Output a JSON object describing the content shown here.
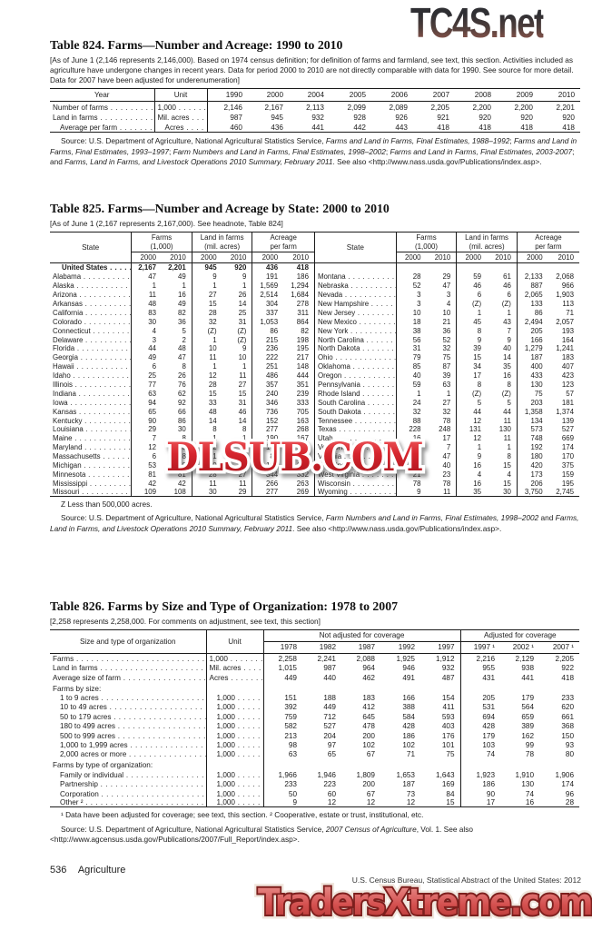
{
  "watermarks": {
    "top": "TC4S.net",
    "middle": "DLSUB.COM",
    "bottom": "TradersXtreme.com",
    "top_color": "#4a3b38",
    "middle_color": "#c41e25",
    "bottom_color": "#d8595b"
  },
  "footer": {
    "page_number": "536",
    "section": "Agriculture",
    "census_line": "U.S. Census Bureau, Statistical Abstract of the United States: 2012"
  },
  "t824": {
    "title": "Table 824. Farms—Number and Acreage: 1990 to 2010",
    "headnote": "[As of June 1 (2,146 represents 2,146,000). Based on 1974 census definition; for definition of farms and farmland, see text, this section. Activities included as agriculture have undergone changes in recent years. Data for period 2000 to 2010 are not directly comparable with data for 1990. See source for more detail. Data for 2007 have been adjusted for underenumeration]",
    "columns": [
      "Year",
      "Unit",
      "1990",
      "2000",
      "2004",
      "2005",
      "2006",
      "2007",
      "2008",
      "2009",
      "2010"
    ],
    "rows": [
      {
        "c": [
          "Number of farms",
          "1,000",
          "2,146",
          "2,167",
          "2,113",
          "2,099",
          "2,089",
          "2,205",
          "2,200",
          "2,200",
          "2,201"
        ]
      },
      {
        "c": [
          "Land in farms",
          "Mil. acres",
          "987",
          "945",
          "932",
          "928",
          "926",
          "921",
          "920",
          "920",
          "920"
        ]
      },
      {
        "cls": "ind",
        "c": [
          "Average per farm",
          "Acres",
          "460",
          "436",
          "441",
          "442",
          "443",
          "418",
          "418",
          "418",
          "418"
        ]
      }
    ],
    "source": [
      [
        "Source: U.S. Department of Agriculture, National Agricultural Statistics Service, ",
        "n"
      ],
      [
        "Farms and Land in Farms, Final Estimates, 1988–1992",
        "i"
      ],
      [
        "; ",
        "n"
      ],
      [
        "Farms and Land in Farms, Final Estimates, 1993–1997",
        "i"
      ],
      [
        "; ",
        "n"
      ],
      [
        "Farm Numbers and Land in Farms, Final Estimates, 1998–2002",
        "i"
      ],
      [
        "; ",
        "n"
      ],
      [
        "Farms and Land in Farms, Final Estimates, 2003-2007",
        "i"
      ],
      [
        "; and ",
        "n"
      ],
      [
        "Farms, Land in Farms, and Livestock Operations 2010 Summary, February 2011",
        "i"
      ],
      [
        ". See also <http://www.nass.usda.gov/Publications/index.asp>.",
        "n"
      ]
    ]
  },
  "t825": {
    "title": "Table 825. Farms—Number and Acreage by State: 2000 to 2010",
    "headnote": "[As of June 1 (2,167 represents 2,167,000). See headnote, Table 824]",
    "state_header": "State",
    "h_farms": [
      "Farms",
      "(1,000)"
    ],
    "h_land": [
      "Land in farms",
      "(mil. acres)"
    ],
    "h_acre": [
      "Acreage",
      "per farm"
    ],
    "years": [
      "2000",
      "2010"
    ],
    "rows": [
      {
        "cls": "us",
        "c": [
          "United States",
          "2,167",
          "2,201",
          "945",
          "920",
          "436",
          "418",
          "",
          "",
          "",
          "",
          "",
          "",
          ""
        ]
      },
      {
        "c": [
          "Alabama",
          "47",
          "49",
          "9",
          "9",
          "191",
          "186",
          "Montana",
          "28",
          "29",
          "59",
          "61",
          "2,133",
          "2,068"
        ]
      },
      {
        "c": [
          "Alaska",
          "1",
          "1",
          "1",
          "1",
          "1,569",
          "1,294",
          "Nebraska",
          "52",
          "47",
          "46",
          "46",
          "887",
          "966"
        ]
      },
      {
        "c": [
          "Arizona",
          "11",
          "16",
          "27",
          "26",
          "2,514",
          "1,684",
          "Nevada",
          "3",
          "3",
          "6",
          "6",
          "2,065",
          "1,903"
        ]
      },
      {
        "c": [
          "Arkansas",
          "48",
          "49",
          "15",
          "14",
          "304",
          "278",
          "New Hampshire",
          "3",
          "4",
          "(Z)",
          "(Z)",
          "133",
          "113"
        ]
      },
      {
        "c": [
          "California",
          "83",
          "82",
          "28",
          "25",
          "337",
          "311",
          "New Jersey",
          "10",
          "10",
          "1",
          "1",
          "86",
          "71"
        ]
      },
      {
        "c": [
          "Colorado",
          "30",
          "36",
          "32",
          "31",
          "1,053",
          "864",
          "New Mexico",
          "18",
          "21",
          "45",
          "43",
          "2,494",
          "2,057"
        ]
      },
      {
        "c": [
          "Connecticut",
          "4",
          "5",
          "(Z)",
          "(Z)",
          "86",
          "82",
          "New York",
          "38",
          "36",
          "8",
          "7",
          "205",
          "193"
        ]
      },
      {
        "c": [
          "Delaware",
          "3",
          "2",
          "1",
          "(Z)",
          "215",
          "198",
          "North Carolina",
          "56",
          "52",
          "9",
          "9",
          "166",
          "164"
        ]
      },
      {
        "c": [
          "Florida",
          "44",
          "48",
          "10",
          "9",
          "236",
          "195",
          "North Dakota",
          "31",
          "32",
          "39",
          "40",
          "1,279",
          "1,241"
        ]
      },
      {
        "c": [
          "Georgia",
          "49",
          "47",
          "11",
          "10",
          "222",
          "217",
          "Ohio",
          "79",
          "75",
          "15",
          "14",
          "187",
          "183"
        ]
      },
      {
        "c": [
          "Hawaii",
          "6",
          "8",
          "1",
          "1",
          "251",
          "148",
          "Oklahoma",
          "85",
          "87",
          "34",
          "35",
          "400",
          "407"
        ]
      },
      {
        "c": [
          "Idaho",
          "25",
          "26",
          "12",
          "11",
          "486",
          "444",
          "Oregon",
          "40",
          "39",
          "17",
          "16",
          "433",
          "423"
        ]
      },
      {
        "c": [
          "Illinois",
          "77",
          "76",
          "28",
          "27",
          "357",
          "351",
          "Pennsylvania",
          "59",
          "63",
          "8",
          "8",
          "130",
          "123"
        ]
      },
      {
        "c": [
          "Indiana",
          "63",
          "62",
          "15",
          "15",
          "240",
          "239",
          "Rhode Island",
          "1",
          "1",
          "(Z)",
          "(Z)",
          "75",
          "57"
        ]
      },
      {
        "c": [
          "Iowa",
          "94",
          "92",
          "33",
          "31",
          "346",
          "333",
          "South Carolina",
          "24",
          "27",
          "5",
          "5",
          "203",
          "181"
        ]
      },
      {
        "c": [
          "Kansas",
          "65",
          "66",
          "48",
          "46",
          "736",
          "705",
          "South Dakota",
          "32",
          "32",
          "44",
          "44",
          "1,358",
          "1,374"
        ]
      },
      {
        "c": [
          "Kentucky",
          "90",
          "86",
          "14",
          "14",
          "152",
          "163",
          "Tennessee",
          "88",
          "78",
          "12",
          "11",
          "134",
          "139"
        ]
      },
      {
        "c": [
          "Louisiana",
          "29",
          "30",
          "8",
          "8",
          "277",
          "268",
          "Texas",
          "228",
          "248",
          "131",
          "130",
          "573",
          "527"
        ]
      },
      {
        "c": [
          "Maine",
          "7",
          "8",
          "1",
          "1",
          "190",
          "167",
          "Utah",
          "16",
          "17",
          "12",
          "11",
          "748",
          "669"
        ]
      },
      {
        "c": [
          "Maryland",
          "12",
          "13",
          "2",
          "2",
          "177",
          "160",
          "Vermont",
          "7",
          "7",
          "1",
          "1",
          "192",
          "174"
        ]
      },
      {
        "c": [
          "Massachusetts",
          "6",
          "8",
          "1",
          "1",
          "85",
          "68",
          "Virginia",
          "49",
          "47",
          "9",
          "8",
          "180",
          "170"
        ]
      },
      {
        "c": [
          "Michigan",
          "53",
          "56",
          "10",
          "10",
          "197",
          "179",
          "Washington",
          "39",
          "40",
          "16",
          "15",
          "420",
          "375"
        ]
      },
      {
        "c": [
          "Minnesota",
          "81",
          "81",
          "28",
          "27",
          "344",
          "332",
          "West Virginia",
          "21",
          "23",
          "4",
          "4",
          "173",
          "159"
        ]
      },
      {
        "c": [
          "Mississippi",
          "42",
          "42",
          "11",
          "11",
          "266",
          "263",
          "Wisconsin",
          "78",
          "78",
          "16",
          "15",
          "206",
          "195"
        ]
      },
      {
        "c": [
          "Missouri",
          "109",
          "108",
          "30",
          "29",
          "277",
          "269",
          "Wyoming",
          "9",
          "11",
          "35",
          "30",
          "3,750",
          "2,745"
        ]
      }
    ],
    "footnote": "Z Less than 500,000 acres.",
    "source": [
      [
        "Source: U.S. Department of Agriculture, National Agricultural Statistics Service, ",
        "n"
      ],
      [
        "Farm Numbers and Land in Farms,",
        "i"
      ],
      [
        " ",
        "n"
      ],
      [
        "Final Estimates, 1998–2002",
        "i"
      ],
      [
        " and ",
        "n"
      ],
      [
        "Farms, Land in Farms, and Livestock Operations 2010 Summary, February 2011",
        "i"
      ],
      [
        ". See also <http://www.nass.usda.gov/Publications/index.asp>.",
        "n"
      ]
    ]
  },
  "t826": {
    "title": "Table 826. Farms by Size and Type of Organization: 1978 to 2007",
    "headnote": "[2,258 represents 2,258,000. For comments on adjustment, see text, this section]",
    "col1_header": "Size and type of organization",
    "col2_header": "Unit",
    "group_na": "Not adjusted for coverage",
    "group_adj": "Adjusted for coverage",
    "years_na": [
      "1978",
      "1982",
      "1987",
      "1992",
      "1997"
    ],
    "years_adj": [
      "1997 ¹",
      "2002 ¹",
      "2007 ¹"
    ],
    "rows": [
      {
        "c": [
          "Farms",
          "1,000",
          "2,258",
          "2,241",
          "2,088",
          "1,925",
          "1,912",
          "2,216",
          "2,129",
          "2,205"
        ]
      },
      {
        "c": [
          "Land in farms",
          "Mil. acres",
          "1,015",
          "987",
          "964",
          "946",
          "932",
          "955",
          "938",
          "922"
        ]
      },
      {
        "c": [
          "Average size of farm",
          "Acres",
          "449",
          "440",
          "462",
          "491",
          "487",
          "431",
          "441",
          "418"
        ]
      },
      {
        "cls": "sub",
        "c": [
          "Farms by size:",
          "",
          "",
          "",
          "",
          "",
          "",
          "",
          "",
          ""
        ]
      },
      {
        "cls": "ind",
        "c": [
          "1 to 9 acres",
          "1,000",
          "151",
          "188",
          "183",
          "166",
          "154",
          "205",
          "179",
          "233"
        ]
      },
      {
        "cls": "ind",
        "c": [
          "10 to 49 acres",
          "1,000",
          "392",
          "449",
          "412",
          "388",
          "411",
          "531",
          "564",
          "620"
        ]
      },
      {
        "cls": "ind",
        "c": [
          "50 to 179 acres",
          "1,000",
          "759",
          "712",
          "645",
          "584",
          "593",
          "694",
          "659",
          "661"
        ]
      },
      {
        "cls": "ind",
        "c": [
          "180 to 499 acres",
          "1,000",
          "582",
          "527",
          "478",
          "428",
          "403",
          "428",
          "389",
          "368"
        ]
      },
      {
        "cls": "ind",
        "c": [
          "500 to 999 acres",
          "1,000",
          "213",
          "204",
          "200",
          "186",
          "176",
          "179",
          "162",
          "150"
        ]
      },
      {
        "cls": "ind",
        "c": [
          "1,000 to 1,999 acres",
          "1,000",
          "98",
          "97",
          "102",
          "102",
          "101",
          "103",
          "99",
          "93"
        ]
      },
      {
        "cls": "ind",
        "c": [
          "2,000 acres or more",
          "1,000",
          "63",
          "65",
          "67",
          "71",
          "75",
          "74",
          "78",
          "80"
        ]
      },
      {
        "cls": "sub",
        "c": [
          "Farms by type of organization:",
          "",
          "",
          "",
          "",
          "",
          "",
          "",
          "",
          ""
        ]
      },
      {
        "cls": "ind",
        "c": [
          "Family or individual",
          "1,000",
          "1,966",
          "1,946",
          "1,809",
          "1,653",
          "1,643",
          "1,923",
          "1,910",
          "1,906"
        ]
      },
      {
        "cls": "ind",
        "c": [
          "Partnership",
          "1,000",
          "233",
          "223",
          "200",
          "187",
          "169",
          "186",
          "130",
          "174"
        ]
      },
      {
        "cls": "ind",
        "c": [
          "Corporation",
          "1,000",
          "50",
          "60",
          "67",
          "73",
          "84",
          "90",
          "74",
          "96"
        ]
      },
      {
        "cls": "ind",
        "c": [
          "Other ²",
          "1,000",
          "9",
          "12",
          "12",
          "12",
          "15",
          "17",
          "16",
          "28"
        ]
      }
    ],
    "footnote": "¹ Data have been adjusted for coverage; see text, this section. ² Cooperative, estate or trust, institutional, etc.",
    "source": [
      [
        "Source: U.S. Department of Agriculture, National Agricultural Statistics Service, ",
        "n"
      ],
      [
        "2007 Census of Agriculture",
        "i"
      ],
      [
        ", Vol. 1. See also <http://www.agcensus.usda.gov/Publications/2007/Full_Report/index.asp>.",
        "n"
      ]
    ]
  }
}
